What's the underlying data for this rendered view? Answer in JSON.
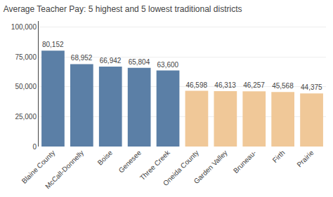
{
  "chart_data": {
    "type": "bar",
    "title": "Average Teacher Pay: 5 highest and 5 lowest traditional districts",
    "categories": [
      "Blaine County",
      "McCall-Donnelly",
      "Boise",
      "Genesee",
      "Three Creek",
      "Oneida County",
      "Garden Valley",
      "Bruneau-",
      "Firth",
      "Prairie"
    ],
    "values": [
      80152,
      68952,
      66942,
      65804,
      63600,
      46598,
      46313,
      46257,
      45568,
      44375
    ],
    "colors": [
      "#5b7fa6",
      "#5b7fa6",
      "#5b7fa6",
      "#5b7fa6",
      "#5b7fa6",
      "#f0c898",
      "#f0c898",
      "#f0c898",
      "#f0c898",
      "#f0c898"
    ],
    "data_labels": true,
    "value_labels": [
      "80,152",
      "68,952",
      "66,942",
      "65,804",
      "63,600",
      "46,598",
      "46,313",
      "46,257",
      "45,568",
      "44,375"
    ],
    "ylim": [
      0,
      105000
    ],
    "yticks": [
      0,
      {
        "value": 25000,
        "label": "25,000"
      },
      {
        "value": 50000,
        "label": "50,000"
      },
      {
        "value": 75000,
        "label": "75,000"
      },
      {
        "value": 100000,
        "label": "100,000"
      }
    ],
    "grid": true
  }
}
